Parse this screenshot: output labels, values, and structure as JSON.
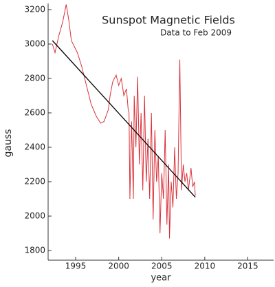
{
  "chart_data": {
    "type": "line",
    "title": "Sunspot Magnetic Fields",
    "subtitle": "Data to Feb 2009",
    "x_label": "year",
    "y_label": "gauss",
    "xlim": [
      1991.8,
      2018
    ],
    "ylim": [
      1744,
      3236
    ],
    "xticks": [
      1995,
      2000,
      2005,
      2010,
      2015
    ],
    "yticks": [
      1800,
      2000,
      2200,
      2400,
      2600,
      2800,
      3000,
      3200
    ],
    "series": [
      {
        "color": "#d9313a",
        "x": [
          1992.3,
          1992.6,
          1993.0,
          1993.5,
          1993.9,
          1994.2,
          1994.5,
          1995.2,
          1995.7,
          1996.3,
          1996.8,
          1997.4,
          1997.9,
          1998.3,
          1998.8,
          1999.0,
          1999.3,
          1999.7,
          2000.0,
          2000.3,
          2000.6,
          2000.9,
          2001.1,
          2001.2,
          2001.3,
          2001.5,
          2001.7,
          2001.8,
          2002.0,
          2002.2,
          2002.4,
          2002.6,
          2002.8,
          2003.0,
          2003.2,
          2003.4,
          2003.6,
          2003.8,
          2004.0,
          2004.2,
          2004.4,
          2004.6,
          2004.8,
          2005.0,
          2005.2,
          2005.4,
          2005.6,
          2005.8,
          2005.9,
          2006.1,
          2006.3,
          2006.5,
          2006.7,
          2006.9,
          2007.1,
          2007.3,
          2007.5,
          2007.7,
          2007.9,
          2008.1,
          2008.4,
          2008.6,
          2008.8,
          2008.9
        ],
        "values": [
          3000,
          2950,
          3040,
          3130,
          3230,
          3140,
          3020,
          2950,
          2870,
          2750,
          2650,
          2580,
          2540,
          2550,
          2620,
          2700,
          2780,
          2820,
          2760,
          2800,
          2700,
          2740,
          2620,
          2600,
          2100,
          2550,
          2100,
          2700,
          2400,
          2810,
          2300,
          2600,
          2150,
          2700,
          2200,
          2450,
          2100,
          2600,
          1980,
          2500,
          2200,
          2350,
          1900,
          2250,
          2100,
          2500,
          1950,
          2300,
          1870,
          2200,
          2050,
          2400,
          2100,
          2250,
          2910,
          2150,
          2300,
          2200,
          2250,
          2150,
          2280,
          2170,
          2200,
          2120
        ]
      }
    ],
    "trend": {
      "color": "#000000",
      "x": [
        1992.3,
        2008.9
      ],
      "values": [
        3020,
        2110
      ]
    }
  }
}
